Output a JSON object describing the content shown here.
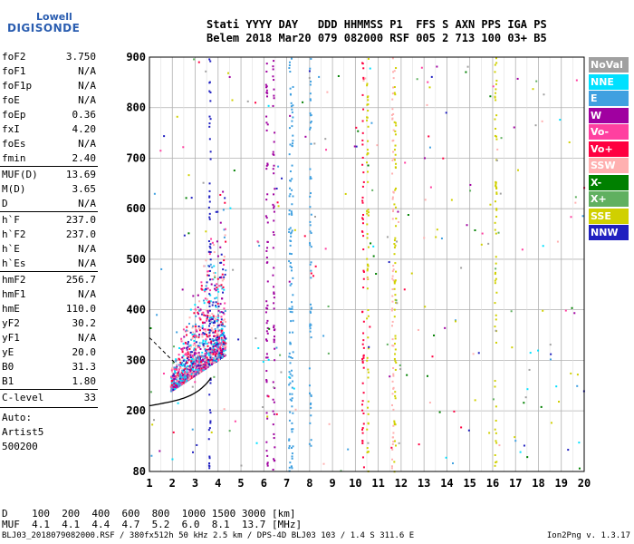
{
  "logo": {
    "top": "Lowell",
    "bottom": "DIGISONDE"
  },
  "header": {
    "line1": "Stati YYYY DAY   DDD HHMMSS P1  FFS S AXN PPS IGA PS",
    "line2": "Belem 2018 Mar20 079 082000 RSF 005 2 713 100 03+ B5"
  },
  "params_group1": [
    {
      "k": "foF2",
      "v": "3.750"
    },
    {
      "k": "foF1",
      "v": "N/A"
    },
    {
      "k": "foF1p",
      "v": "N/A"
    },
    {
      "k": "foE",
      "v": "N/A"
    },
    {
      "k": "foEp",
      "v": "0.36"
    },
    {
      "k": "fxI",
      "v": "4.20"
    },
    {
      "k": "foEs",
      "v": "N/A"
    },
    {
      "k": "fmin",
      "v": "2.40"
    }
  ],
  "params_group2": [
    {
      "k": "MUF(D)",
      "v": "13.69"
    },
    {
      "k": "M(D)",
      "v": "3.65"
    },
    {
      "k": "D",
      "v": "N/A"
    }
  ],
  "params_group3": [
    {
      "k": "h`F",
      "v": "237.0"
    },
    {
      "k": "h`F2",
      "v": "237.0"
    },
    {
      "k": "h`E",
      "v": "N/A"
    },
    {
      "k": "h`Es",
      "v": "N/A"
    }
  ],
  "params_group4": [
    {
      "k": "hmF2",
      "v": "256.7"
    },
    {
      "k": "hmF1",
      "v": "N/A"
    },
    {
      "k": "hmE",
      "v": "110.0"
    },
    {
      "k": "yF2",
      "v": "30.2"
    },
    {
      "k": "yF1",
      "v": "N/A"
    },
    {
      "k": "yE",
      "v": "20.0"
    },
    {
      "k": "B0",
      "v": "31.3"
    },
    {
      "k": "B1",
      "v": "1.80"
    }
  ],
  "clevel": {
    "k": "C-level",
    "v": "33"
  },
  "auto": [
    "Auto:",
    "Artist5",
    "500200"
  ],
  "legend": [
    {
      "label": "NoVal",
      "color": "#a0a0a0"
    },
    {
      "label": "NNE",
      "color": "#00e0ff"
    },
    {
      "label": "E",
      "color": "#40a0e0"
    },
    {
      "label": "W",
      "color": "#a000a0"
    },
    {
      "label": "Vo-",
      "color": "#ff40a0"
    },
    {
      "label": "Vo+",
      "color": "#ff0040"
    },
    {
      "label": "SSW",
      "color": "#ffb0b0"
    },
    {
      "label": "X-",
      "color": "#008000"
    },
    {
      "label": "X+",
      "color": "#60b060"
    },
    {
      "label": "SSE",
      "color": "#d0d000"
    },
    {
      "label": "NNW",
      "color": "#2020c0"
    }
  ],
  "chart_data": {
    "type": "scatter",
    "xlim": [
      1,
      20
    ],
    "ylim": [
      80,
      900
    ],
    "x_ticks": [
      "1",
      "2",
      "3",
      "4",
      "5",
      "6",
      "7",
      "8",
      "9",
      "10",
      "11",
      "12",
      "13",
      "14",
      "15",
      "16",
      "17",
      "18",
      "19",
      "20"
    ],
    "y_ticks": [
      "80",
      "200",
      "300",
      "400",
      "500",
      "600",
      "700",
      "800",
      "900"
    ],
    "grid": true
  },
  "footer": {
    "d_row": "D    100  200  400  600  800  1000 1500 3000 [km]",
    "muf_row": "MUF  4.1  4.1  4.4  4.7  5.2  6.0  8.1  13.7 [MHz]",
    "filename": "BLJ03_2018079082000.RSF / 380fx512h 50 kHz 2.5 km / DPS-4D BLJ03 103 / 1.4 S 311.6 E",
    "version": "Ion2Png v. 1.3.17"
  }
}
